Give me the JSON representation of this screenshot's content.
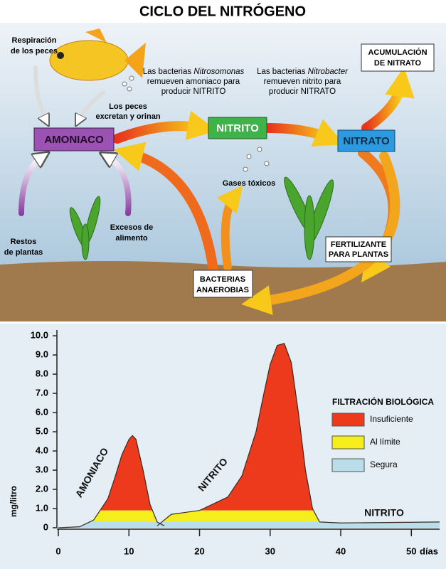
{
  "title": "CICLO DEL NITRÓGENO",
  "diagram": {
    "boxes": {
      "amoniaco": "AMONIACO",
      "nitrito": "NITRITO",
      "nitrato": "NITRATO",
      "acumulacion": [
        "ACUMULACIÓN",
        "DE NITRATO"
      ],
      "fertilizante": [
        "FERTILIZANTE",
        "PARA PLANTAS"
      ],
      "bacterias": [
        "BACTERIAS",
        "ANAEROBIAS"
      ]
    },
    "labels": {
      "respiracion": [
        "Respiración",
        "de los peces"
      ],
      "excretan": [
        "Los peces",
        "excretan y orinan"
      ],
      "nitrosomonas": [
        [
          "Las bacterias ",
          "Nitrosomonas"
        ],
        [
          "remueven amoniaco para"
        ],
        [
          "producir NITRITO"
        ]
      ],
      "nitrobacter": [
        [
          "Las bacterias ",
          "Nitrobacter"
        ],
        [
          "remueven nitrito para"
        ],
        [
          "producir NITRATO"
        ]
      ],
      "gases": "Gases tóxicos",
      "restos": [
        "Restos",
        "de plantas"
      ],
      "excesos": [
        "Excesos de",
        "alimento"
      ]
    }
  },
  "chart_data": {
    "type": "area",
    "ylabel": "mg/litro",
    "xlabel": "días",
    "xlim": [
      0,
      54
    ],
    "ylim": [
      0,
      10.3
    ],
    "xticks": [
      0,
      10,
      20,
      30,
      40,
      50
    ],
    "yticks": [
      0,
      {
        "value": 1,
        "label": "1.0"
      },
      {
        "value": 2,
        "label": "2.0"
      },
      {
        "value": 3,
        "label": "3.0"
      },
      {
        "value": 4,
        "label": "4.0"
      },
      {
        "value": 5,
        "label": "5.0"
      },
      {
        "value": 6,
        "label": "6.0"
      },
      {
        "value": 7,
        "label": "7.0"
      },
      {
        "value": 8,
        "label": "8.0"
      },
      {
        "value": 9,
        "label": "9.0"
      },
      {
        "value": 10,
        "label": "10.0"
      }
    ],
    "series": [
      {
        "name": "AMONIACO",
        "x": [
          0,
          3,
          5,
          7,
          8,
          9,
          10,
          10.5,
          11,
          12,
          13,
          14,
          15
        ],
        "values": [
          0,
          0.05,
          0.4,
          1.5,
          2.6,
          3.8,
          4.6,
          4.8,
          4.6,
          3,
          1.2,
          0.3,
          0.1
        ]
      },
      {
        "name": "NITRITO",
        "x": [
          14,
          16,
          20,
          24,
          26,
          28,
          29,
          30,
          31,
          32,
          33,
          34,
          35,
          36,
          37
        ],
        "values": [
          0.1,
          0.7,
          0.9,
          1.6,
          2.7,
          5,
          6.8,
          8.5,
          9.5,
          9.6,
          8.6,
          6,
          3,
          1,
          0.3
        ]
      },
      {
        "name": "NITRITO",
        "x": [
          37,
          40,
          54
        ],
        "values": [
          0.3,
          0.25,
          0.3
        ]
      }
    ],
    "legend": {
      "title": "FILTRACIÓN BIOLÓGICA"
    },
    "zones": [
      {
        "name": "Insuficiente",
        "color": "#ee3a1c",
        "range": [
          0.9,
          10.3
        ]
      },
      {
        "name": "Al límite",
        "color": "#f5ee1a",
        "range": [
          0.3,
          0.9
        ]
      },
      {
        "name": "Segura",
        "color": "#b9dde9",
        "range": [
          0,
          0.3
        ]
      }
    ]
  }
}
